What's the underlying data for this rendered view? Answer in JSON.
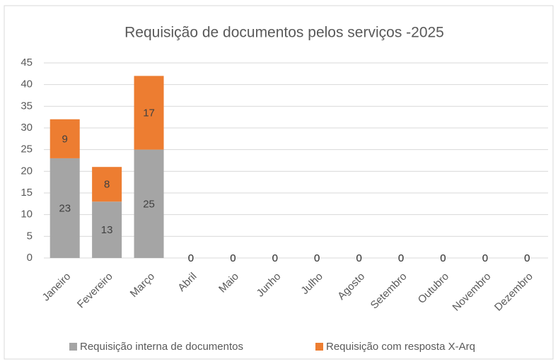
{
  "chart_data": {
    "type": "stacked_bar",
    "title": "Requisição de documentos pelos serviços -2025",
    "categories": [
      "Janeiro",
      "Fevereiro",
      "Março",
      "Abril",
      "Maio",
      "Junho",
      "Julho",
      "Agosto",
      "Setembro",
      "Outubro",
      "Novembro",
      "Dezembro"
    ],
    "series": [
      {
        "name": "Requisição interna de documentos",
        "color": "#a5a5a5",
        "values": [
          23,
          13,
          25,
          0,
          0,
          0,
          0,
          0,
          0,
          0,
          0,
          0
        ]
      },
      {
        "name": "Requisição com resposta X-Arq",
        "color": "#ed7d31",
        "values": [
          9,
          8,
          17,
          0,
          0,
          0,
          0,
          0,
          0,
          0,
          0,
          0
        ]
      }
    ],
    "ylim": [
      0,
      45
    ],
    "yticks": [
      0,
      5,
      10,
      15,
      20,
      25,
      30,
      35,
      40,
      45
    ],
    "grid": true,
    "legend": "bottom"
  }
}
